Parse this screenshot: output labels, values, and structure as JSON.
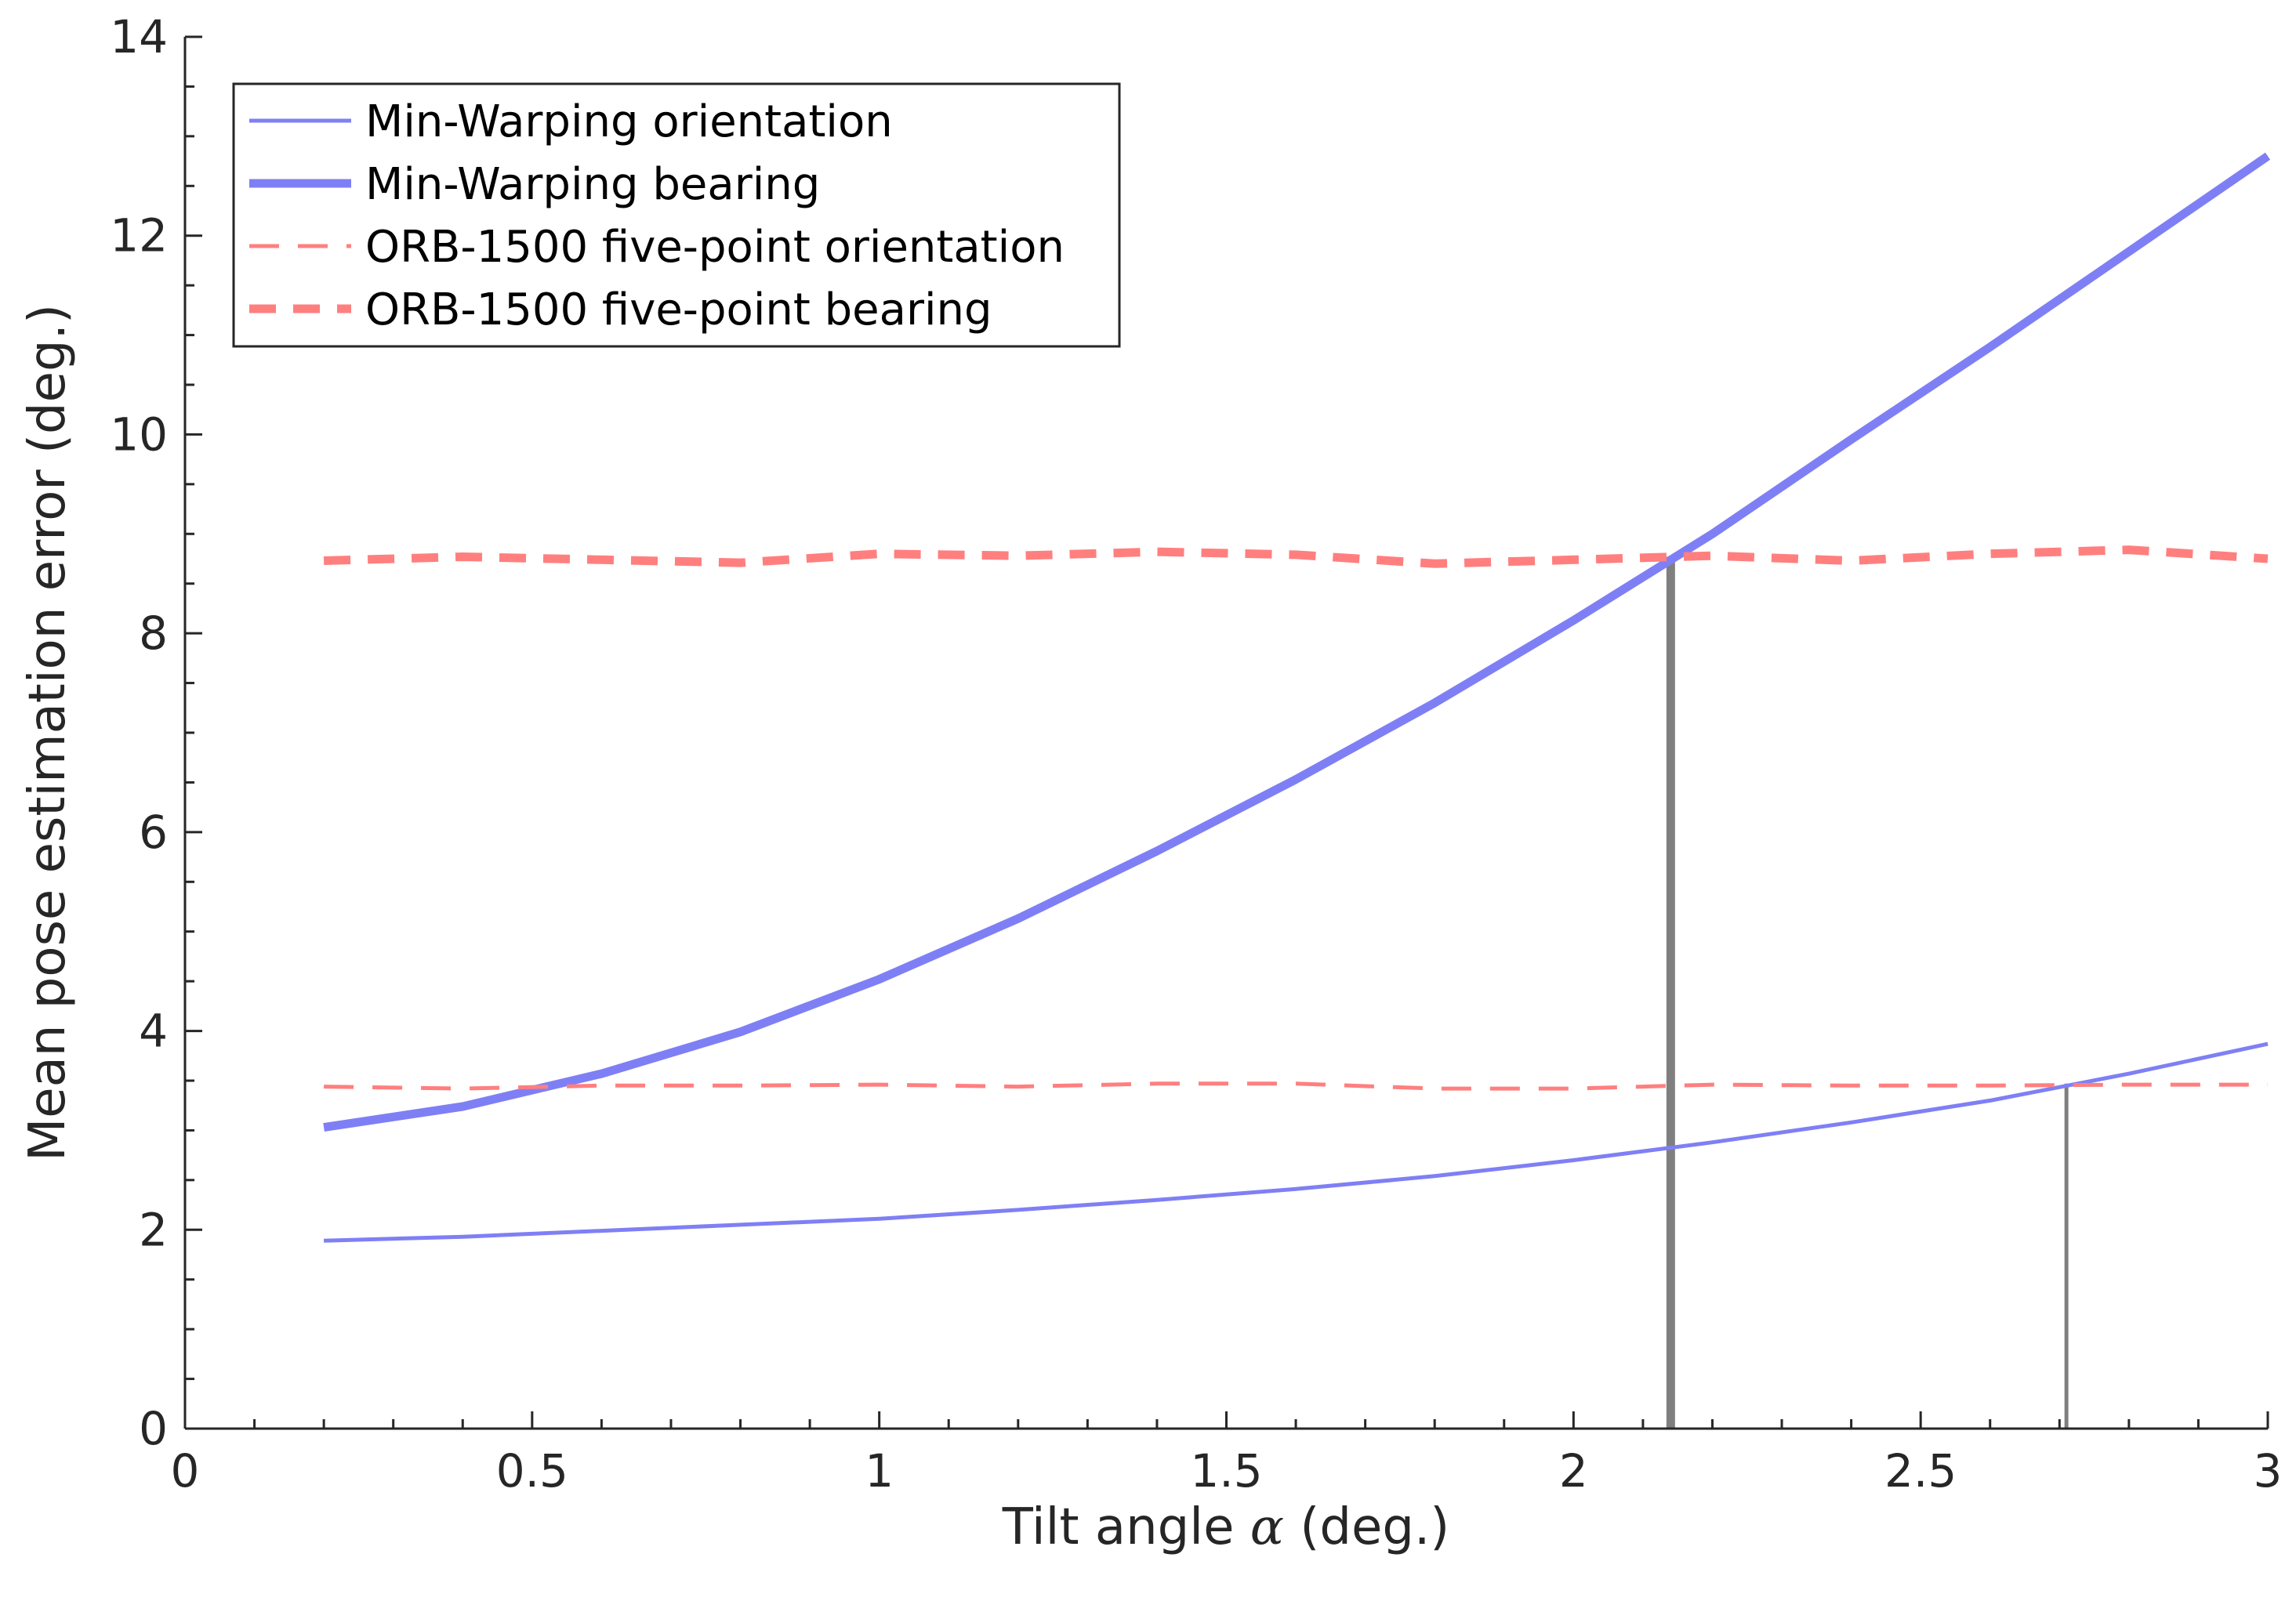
{
  "chart_data": {
    "type": "line",
    "title": "",
    "xlabel_prefix": "Tilt angle ",
    "xlabel_symbol": "α",
    "xlabel_suffix": " (deg.)",
    "ylabel": "Mean pose estimation error (deg.)",
    "xlim": [
      0,
      3
    ],
    "ylim": [
      0,
      14
    ],
    "xticks": [
      0,
      0.5,
      1,
      1.5,
      2,
      2.5,
      3
    ],
    "xtick_labels": [
      "0",
      "0.5",
      "1",
      "1.5",
      "2",
      "2.5",
      "3"
    ],
    "xminor_step": 0.1,
    "yticks": [
      0,
      2,
      4,
      6,
      8,
      10,
      12,
      14
    ],
    "ytick_labels": [
      "0",
      "2",
      "4",
      "6",
      "8",
      "10",
      "12",
      "14"
    ],
    "yminor_step": 0.5,
    "grid": false,
    "legend_position": "top-left",
    "x": [
      0.2,
      0.4,
      0.6,
      0.8,
      1.0,
      1.2,
      1.4,
      1.6,
      1.8,
      2.0,
      2.2,
      2.4,
      2.6,
      2.8,
      3.0
    ],
    "series": [
      {
        "name": "Min-Warping orientation",
        "color": "#7f7ff5",
        "style": "solid",
        "weight": "thin",
        "values": [
          1.89,
          1.93,
          1.99,
          2.05,
          2.11,
          2.2,
          2.3,
          2.41,
          2.54,
          2.7,
          2.88,
          3.08,
          3.3,
          3.57,
          3.87
        ]
      },
      {
        "name": "Min-Warping bearing",
        "color": "#7f7ff5",
        "style": "solid",
        "weight": "thick",
        "values": [
          3.03,
          3.24,
          3.57,
          3.99,
          4.52,
          5.13,
          5.81,
          6.53,
          7.3,
          8.13,
          9.0,
          9.95,
          10.88,
          11.84,
          12.8
        ]
      },
      {
        "name": "ORB-1500 five-point orientation",
        "color": "#ff7f7f",
        "style": "dashed",
        "weight": "thin",
        "values": [
          3.44,
          3.42,
          3.45,
          3.45,
          3.46,
          3.44,
          3.47,
          3.47,
          3.42,
          3.42,
          3.46,
          3.45,
          3.45,
          3.46,
          3.46
        ]
      },
      {
        "name": "ORB-1500 five-point bearing",
        "color": "#ff7f7f",
        "style": "dashed",
        "weight": "thick",
        "values": [
          8.73,
          8.77,
          8.74,
          8.71,
          8.8,
          8.78,
          8.82,
          8.79,
          8.7,
          8.74,
          8.78,
          8.73,
          8.8,
          8.84,
          8.75
        ]
      }
    ],
    "crossing_markers": [
      {
        "x": 2.14,
        "y": 8.77,
        "weight": "thick",
        "color": "#7f7f7f"
      },
      {
        "x": 2.71,
        "y": 3.47,
        "weight": "thin",
        "color": "#7f7f7f"
      }
    ]
  }
}
